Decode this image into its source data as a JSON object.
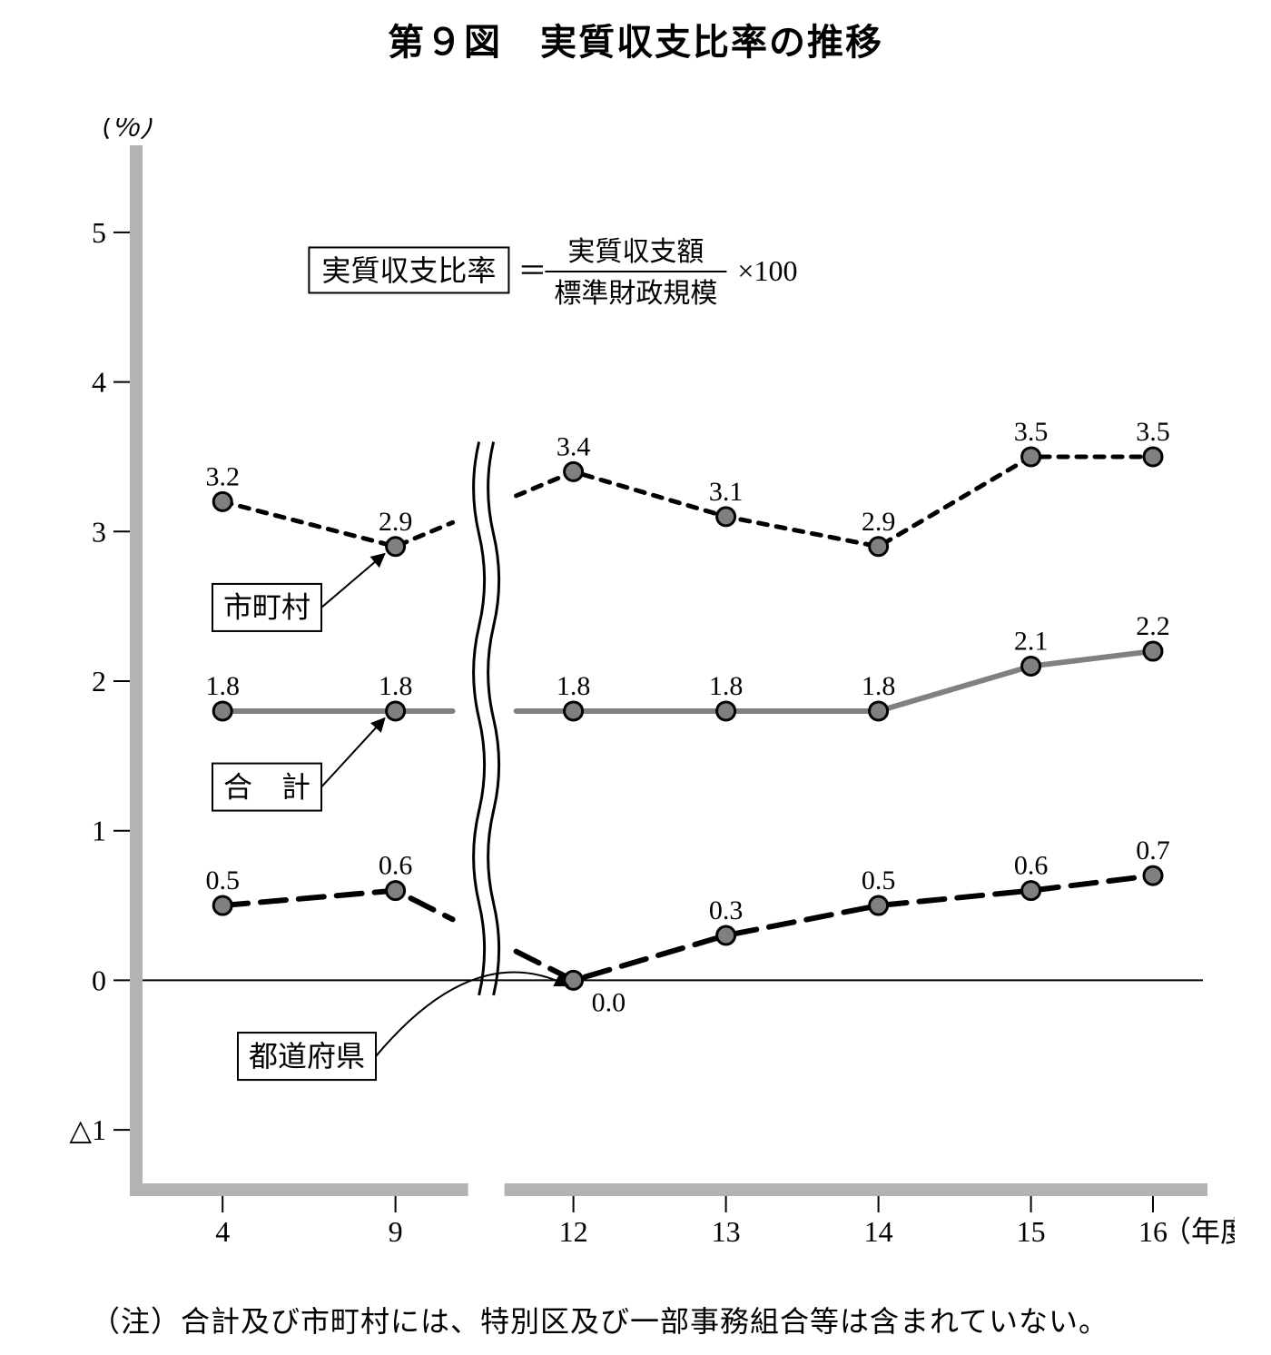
{
  "title": "第９図　実質収支比率の推移",
  "y_axis_unit_label": "（％）",
  "x_axis_unit_label": "（年度）",
  "footnote": "（注）合計及び市町村には、特別区及び一部事務組合等は含まれていない。",
  "chart": {
    "type": "line",
    "background_color": "#ffffff",
    "axis_color": "#b3b3b3",
    "axis_width": 14,
    "tick_color": "#000000",
    "tick_width": 2,
    "zero_line_color": "#000000",
    "zero_line_width": 2,
    "marker_radius": 10,
    "marker_fill": "#808080",
    "marker_stroke": "#000000",
    "marker_stroke_width": 3,
    "label_fontsize": 30,
    "tick_fontsize": 32,
    "legend_box_stroke": "#000000",
    "legend_box_stroke_width": 2,
    "ylim": [
      -1.4,
      5.4
    ],
    "yticks": [
      -1,
      0,
      1,
      2,
      3,
      4,
      5
    ],
    "ytick_labels": [
      "△1",
      "0",
      "1",
      "2",
      "3",
      "4",
      "5"
    ],
    "x_categories": [
      "4",
      "9",
      "12",
      "13",
      "14",
      "15",
      "16"
    ],
    "x_break_between_index": 1,
    "x_positions": [
      0.085,
      0.255,
      0.43,
      0.58,
      0.73,
      0.88,
      1.0
    ],
    "series": [
      {
        "name": "市町村",
        "label": "市町村",
        "values": [
          3.2,
          2.9,
          3.4,
          3.1,
          2.9,
          3.5,
          3.5
        ],
        "line_color": "#000000",
        "line_width": 5,
        "dash": "10,10",
        "legend_box_x": 0.075,
        "legend_box_y": 2.65,
        "arrow_to_index": 1
      },
      {
        "name": "合計",
        "label": "合　計",
        "values": [
          1.8,
          1.8,
          1.8,
          1.8,
          1.8,
          2.1,
          2.2
        ],
        "line_color": "#808080",
        "line_width": 6,
        "dash": "",
        "legend_box_x": 0.075,
        "legend_box_y": 1.45,
        "arrow_to_index": 1
      },
      {
        "name": "都道府県",
        "label": "都道府県",
        "values": [
          0.5,
          0.6,
          0.0,
          0.3,
          0.5,
          0.6,
          0.7
        ],
        "line_color": "#000000",
        "line_width": 6,
        "dash": "28,14",
        "legend_box_x": 0.1,
        "legend_box_y": -0.35,
        "arrow_to_index": 2,
        "arrow_mid_y": 0.28
      }
    ],
    "formula": {
      "lhs_box": "実質収支比率",
      "numerator": "実質収支額",
      "denominator": "標準財政規模",
      "tail": "×100",
      "equals": "＝"
    }
  }
}
